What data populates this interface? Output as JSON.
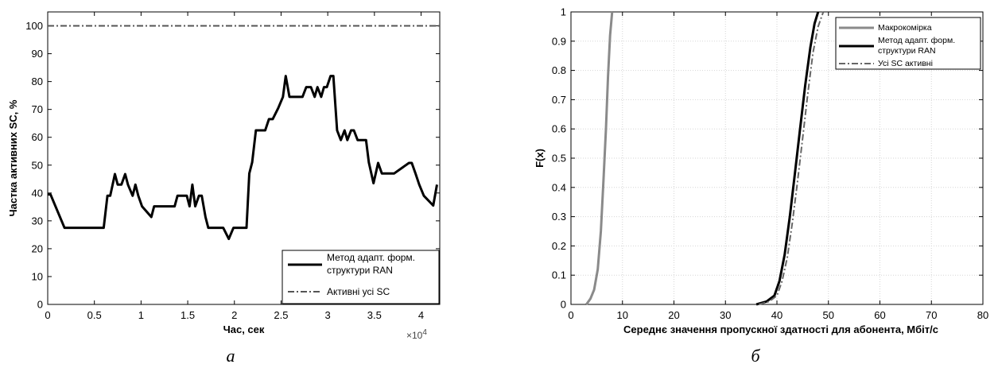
{
  "chart_data": [
    {
      "type": "line",
      "panel_label": "а",
      "title": "",
      "xlabel": "Час, сек",
      "ylabel": "Частка активних SC, %",
      "x_exponent_label": "×10",
      "x_exponent_power": "4",
      "xlim": [
        0,
        42000
      ],
      "ylim": [
        0,
        105
      ],
      "xticks": [
        0,
        5000,
        10000,
        15000,
        20000,
        25000,
        30000,
        35000,
        40000
      ],
      "xtick_labels": [
        "0",
        "0.5",
        "1",
        "1.5",
        "2",
        "2.5",
        "3",
        "3.5",
        "4"
      ],
      "yticks": [
        0,
        10,
        20,
        30,
        40,
        50,
        60,
        70,
        80,
        90,
        100
      ],
      "ytick_labels": [
        "0",
        "10",
        "20",
        "30",
        "40",
        "50",
        "60",
        "70",
        "80",
        "90",
        "100"
      ],
      "grid": false,
      "legend_position": "bottom-right",
      "legend": [
        "Метод адапт. форм. структури RAN",
        "Активні усі SC"
      ],
      "legend_lines": [
        [
          "Метод адапт. форм.",
          "структури RAN"
        ],
        [
          "Активні усі SC"
        ]
      ],
      "series": [
        {
          "name": "Метод адапт. форм. структури RAN",
          "color": "#000000",
          "style": "solid",
          "x": [
            0,
            300,
            1800,
            6000,
            6400,
            6700,
            7200,
            7500,
            7900,
            8300,
            8600,
            9100,
            9400,
            9700,
            10100,
            11100,
            11400,
            11800,
            13600,
            13900,
            14900,
            15200,
            15500,
            15800,
            16200,
            16500,
            16900,
            17200,
            17600,
            17900,
            18800,
            19400,
            19900,
            20300,
            21300,
            21600,
            21900,
            22300,
            22800,
            23300,
            23700,
            24100,
            24700,
            25200,
            25500,
            25900,
            26400,
            27300,
            27700,
            28200,
            28600,
            28900,
            29300,
            29600,
            29900,
            30300,
            30600,
            31000,
            31400,
            31800,
            32100,
            32500,
            32800,
            33200,
            33600,
            34100,
            34400,
            34900,
            35400,
            35800,
            36200,
            36600,
            37100,
            38700,
            39000,
            39400,
            39800,
            40300,
            41300,
            41700
          ],
          "y": [
            39.5,
            39.5,
            27.5,
            27.5,
            39,
            39,
            46.8,
            43,
            43,
            46.8,
            43,
            39,
            43,
            39,
            35.2,
            31.4,
            35.2,
            35.2,
            35.2,
            39,
            39,
            35.2,
            43,
            35.2,
            39,
            39,
            31.4,
            27.5,
            27.5,
            27.5,
            27.5,
            23.5,
            27.5,
            27.5,
            27.5,
            47,
            51,
            62.5,
            62.5,
            62.5,
            66.5,
            66.5,
            70.5,
            74.5,
            82,
            74.5,
            74.5,
            74.5,
            78,
            78,
            74.5,
            78,
            74.5,
            78,
            78,
            82,
            82,
            62.5,
            59,
            62.5,
            59,
            62.5,
            62.5,
            59,
            59,
            59,
            51,
            43.5,
            50.8,
            47,
            47,
            47,
            47,
            50.8,
            50.8,
            47,
            43,
            39,
            35.5,
            43
          ]
        },
        {
          "name": "Активні усі SC",
          "color": "#555555",
          "style": "dash-dot",
          "x": [
            0,
            42000
          ],
          "y": [
            100,
            100
          ]
        }
      ]
    },
    {
      "type": "line",
      "panel_label": "б",
      "title": "",
      "xlabel": "Середнє значення пропускної здатності для абонента, Мбіт/с",
      "ylabel": "F(x)",
      "xlim": [
        0,
        80
      ],
      "ylim": [
        0,
        1
      ],
      "xticks": [
        0,
        10,
        20,
        30,
        40,
        50,
        60,
        70,
        80
      ],
      "xtick_labels": [
        "0",
        "10",
        "20",
        "30",
        "40",
        "50",
        "60",
        "70",
        "80"
      ],
      "yticks": [
        0,
        0.1,
        0.2,
        0.3,
        0.4,
        0.5,
        0.6,
        0.7,
        0.8,
        0.9,
        1
      ],
      "ytick_labels": [
        "0",
        "0.1",
        "0.2",
        "0.3",
        "0.4",
        "0.5",
        "0.6",
        "0.7",
        "0.8",
        "0.9",
        "1"
      ],
      "grid": true,
      "legend_position": "top-right",
      "legend": [
        "Макрокомірка",
        "Метод адапт. форм. структури RAN",
        "Усі SC активні"
      ],
      "legend_lines": [
        [
          "Макрокомірка"
        ],
        [
          "Метод адапт. форм.",
          "структури RAN"
        ],
        [
          "Усі SC активні"
        ]
      ],
      "series": [
        {
          "name": "Макрокомірка",
          "color": "#8a8a8a",
          "style": "solid",
          "x": [
            3,
            3.8,
            4.5,
            5.2,
            5.8,
            6.3,
            6.8,
            7.2,
            7.6,
            8
          ],
          "y": [
            0,
            0.02,
            0.05,
            0.12,
            0.25,
            0.42,
            0.6,
            0.78,
            0.92,
            1
          ]
        },
        {
          "name": "Метод адапт. форм. структури RAN",
          "color": "#000000",
          "style": "solid",
          "x": [
            36,
            38,
            39.5,
            40.5,
            41.5,
            42.5,
            43.5,
            44.5,
            45.5,
            46.5,
            47.3,
            48
          ],
          "y": [
            0,
            0.01,
            0.03,
            0.08,
            0.17,
            0.3,
            0.45,
            0.6,
            0.75,
            0.88,
            0.96,
            1
          ]
        },
        {
          "name": "Усі SC активні",
          "color": "#666666",
          "style": "dash-dot",
          "x": [
            36.5,
            38.5,
            40,
            41,
            42,
            43,
            44,
            45,
            46,
            47,
            48,
            49
          ],
          "y": [
            0,
            0.01,
            0.03,
            0.08,
            0.16,
            0.28,
            0.42,
            0.57,
            0.72,
            0.86,
            0.95,
            1
          ]
        }
      ]
    }
  ]
}
